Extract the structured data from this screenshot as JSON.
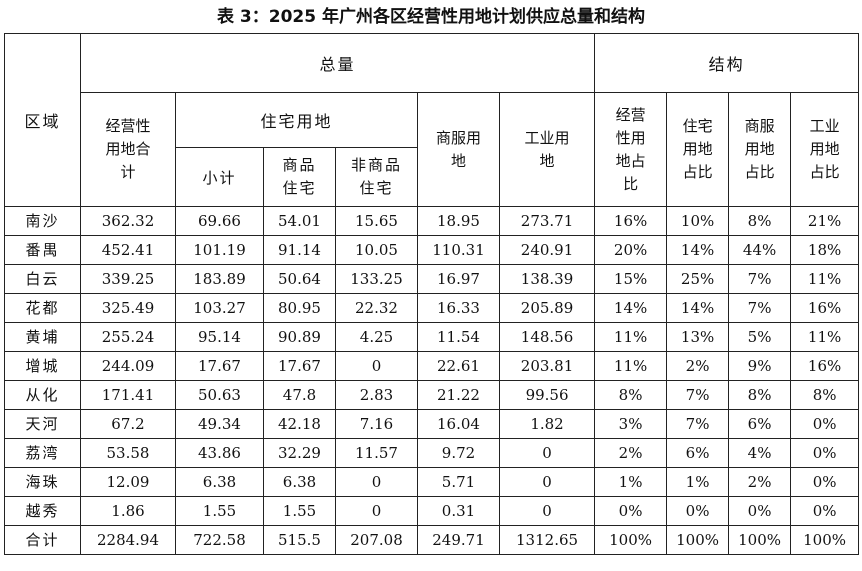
{
  "title": "表 3：2025 年广州各区经营性用地计划供应总量和结构",
  "headers": {
    "region": "区域",
    "total_group": "总量",
    "structure_group": "结构",
    "commercial_total": [
      "经营性",
      "用地合",
      "计"
    ],
    "residential_group": "住宅用地",
    "subtotal": "小计",
    "commodity_housing": [
      "商品",
      "住宅"
    ],
    "non_commodity_housing": [
      "非商品",
      "住宅"
    ],
    "business_service": [
      "商服用",
      "地"
    ],
    "industrial": [
      "工业用",
      "地"
    ],
    "commercial_share": [
      "经营",
      "性用",
      "地占",
      "比"
    ],
    "residential_share": [
      "住宅",
      "用地",
      "占比"
    ],
    "business_share": [
      "商服",
      "用地",
      "占比"
    ],
    "industrial_share": [
      "工业",
      "用地",
      "占比"
    ]
  },
  "rows": [
    {
      "region": "南沙",
      "total": "362.32",
      "subtotal": "69.66",
      "commodity": "54.01",
      "non_commodity": "15.65",
      "business": "18.95",
      "industrial": "273.71",
      "s_total": "16%",
      "s_res": "10%",
      "s_bus": "8%",
      "s_ind": "21%"
    },
    {
      "region": "番禺",
      "total": "452.41",
      "subtotal": "101.19",
      "commodity": "91.14",
      "non_commodity": "10.05",
      "business": "110.31",
      "industrial": "240.91",
      "s_total": "20%",
      "s_res": "14%",
      "s_bus": "44%",
      "s_ind": "18%"
    },
    {
      "region": "白云",
      "total": "339.25",
      "subtotal": "183.89",
      "commodity": "50.64",
      "non_commodity": "133.25",
      "business": "16.97",
      "industrial": "138.39",
      "s_total": "15%",
      "s_res": "25%",
      "s_bus": "7%",
      "s_ind": "11%"
    },
    {
      "region": "花都",
      "total": "325.49",
      "subtotal": "103.27",
      "commodity": "80.95",
      "non_commodity": "22.32",
      "business": "16.33",
      "industrial": "205.89",
      "s_total": "14%",
      "s_res": "14%",
      "s_bus": "7%",
      "s_ind": "16%"
    },
    {
      "region": "黄埔",
      "total": "255.24",
      "subtotal": "95.14",
      "commodity": "90.89",
      "non_commodity": "4.25",
      "business": "11.54",
      "industrial": "148.56",
      "s_total": "11%",
      "s_res": "13%",
      "s_bus": "5%",
      "s_ind": "11%"
    },
    {
      "region": "增城",
      "total": "244.09",
      "subtotal": "17.67",
      "commodity": "17.67",
      "non_commodity": "0",
      "business": "22.61",
      "industrial": "203.81",
      "s_total": "11%",
      "s_res": "2%",
      "s_bus": "9%",
      "s_ind": "16%"
    },
    {
      "region": "从化",
      "total": "171.41",
      "subtotal": "50.63",
      "commodity": "47.8",
      "non_commodity": "2.83",
      "business": "21.22",
      "industrial": "99.56",
      "s_total": "8%",
      "s_res": "7%",
      "s_bus": "8%",
      "s_ind": "8%"
    },
    {
      "region": "天河",
      "total": "67.2",
      "subtotal": "49.34",
      "commodity": "42.18",
      "non_commodity": "7.16",
      "business": "16.04",
      "industrial": "1.82",
      "s_total": "3%",
      "s_res": "7%",
      "s_bus": "6%",
      "s_ind": "0%"
    },
    {
      "region": "荔湾",
      "total": "53.58",
      "subtotal": "43.86",
      "commodity": "32.29",
      "non_commodity": "11.57",
      "business": "9.72",
      "industrial": "0",
      "s_total": "2%",
      "s_res": "6%",
      "s_bus": "4%",
      "s_ind": "0%"
    },
    {
      "region": "海珠",
      "total": "12.09",
      "subtotal": "6.38",
      "commodity": "6.38",
      "non_commodity": "0",
      "business": "5.71",
      "industrial": "0",
      "s_total": "1%",
      "s_res": "1%",
      "s_bus": "2%",
      "s_ind": "0%"
    },
    {
      "region": "越秀",
      "total": "1.86",
      "subtotal": "1.55",
      "commodity": "1.55",
      "non_commodity": "0",
      "business": "0.31",
      "industrial": "0",
      "s_total": "0%",
      "s_res": "0%",
      "s_bus": "0%",
      "s_ind": "0%"
    },
    {
      "region": "合计",
      "total": "2284.94",
      "subtotal": "722.58",
      "commodity": "515.5",
      "non_commodity": "207.08",
      "business": "249.71",
      "industrial": "1312.65",
      "s_total": "100%",
      "s_res": "100%",
      "s_bus": "100%",
      "s_ind": "100%"
    }
  ]
}
